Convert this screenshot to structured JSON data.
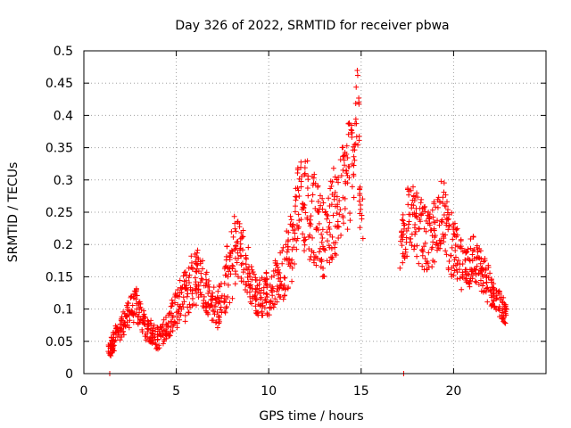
{
  "chart_data": {
    "type": "scatter",
    "title": "Day 326 of 2022, SRMTID for receiver pbwa",
    "xlabel": "GPS time / hours",
    "ylabel": "SRMTID / TECUs",
    "xlim": [
      0,
      25
    ],
    "ylim": [
      0,
      0.5
    ],
    "xticks": [
      0,
      5,
      10,
      15,
      20
    ],
    "yticks": [
      0,
      0.05,
      0.1,
      0.15,
      0.2,
      0.25,
      0.3,
      0.35,
      0.4,
      0.45,
      0.5
    ],
    "grid": true,
    "marker": "+",
    "color": "#ff0000",
    "series": [
      {
        "name": "SRMTID",
        "x": [
          1.4,
          1.5,
          1.6,
          1.8,
          2.0,
          2.2,
          2.4,
          2.6,
          2.8,
          3.0,
          3.2,
          3.4,
          3.6,
          3.8,
          4.0,
          4.2,
          4.4,
          4.6,
          4.8,
          5.0,
          5.2,
          5.4,
          5.6,
          5.8,
          6.0,
          6.2,
          6.4,
          6.6,
          6.8,
          7.0,
          7.2,
          7.4,
          7.6,
          7.8,
          8.0,
          8.2,
          8.4,
          8.6,
          8.8,
          9.0,
          9.2,
          9.4,
          9.6,
          9.8,
          10.0,
          10.2,
          10.4,
          10.6,
          10.8,
          11.0,
          11.2,
          11.4,
          11.6,
          11.8,
          12.0,
          12.2,
          12.4,
          12.6,
          12.8,
          13.0,
          13.2,
          13.4,
          13.6,
          13.8,
          14.0,
          14.2,
          14.4,
          14.6,
          14.8,
          15.0,
          17.2,
          17.4,
          17.6,
          17.8,
          18.0,
          18.2,
          18.4,
          18.6,
          18.8,
          19.0,
          19.2,
          19.4,
          19.6,
          19.8,
          20.0,
          20.2,
          20.4,
          20.6,
          20.8,
          21.0,
          21.2,
          21.4,
          21.6,
          21.8,
          22.0,
          22.2,
          22.4,
          22.6,
          22.8,
          1.4,
          17.3
        ],
        "y": [
          0.035,
          0.045,
          0.05,
          0.06,
          0.07,
          0.08,
          0.09,
          0.1,
          0.11,
          0.095,
          0.08,
          0.07,
          0.065,
          0.06,
          0.055,
          0.06,
          0.07,
          0.08,
          0.09,
          0.1,
          0.11,
          0.12,
          0.13,
          0.14,
          0.15,
          0.16,
          0.14,
          0.13,
          0.12,
          0.11,
          0.1,
          0.11,
          0.13,
          0.15,
          0.17,
          0.19,
          0.2,
          0.18,
          0.16,
          0.14,
          0.13,
          0.12,
          0.12,
          0.13,
          0.12,
          0.13,
          0.14,
          0.15,
          0.16,
          0.18,
          0.2,
          0.23,
          0.26,
          0.28,
          0.27,
          0.25,
          0.24,
          0.23,
          0.22,
          0.21,
          0.22,
          0.24,
          0.25,
          0.26,
          0.28,
          0.3,
          0.32,
          0.35,
          0.4,
          0.25,
          0.2,
          0.22,
          0.25,
          0.24,
          0.23,
          0.22,
          0.21,
          0.2,
          0.21,
          0.22,
          0.24,
          0.25,
          0.23,
          0.2,
          0.19,
          0.18,
          0.17,
          0.16,
          0.17,
          0.18,
          0.17,
          0.16,
          0.15,
          0.14,
          0.13,
          0.12,
          0.11,
          0.1,
          0.09,
          0.0,
          0.0
        ],
        "spread": [
          0.012,
          0.015,
          0.015,
          0.016,
          0.018,
          0.02,
          0.02,
          0.022,
          0.022,
          0.02,
          0.02,
          0.018,
          0.018,
          0.018,
          0.018,
          0.018,
          0.02,
          0.022,
          0.025,
          0.03,
          0.035,
          0.04,
          0.04,
          0.045,
          0.045,
          0.045,
          0.04,
          0.035,
          0.03,
          0.03,
          0.03,
          0.035,
          0.04,
          0.05,
          0.06,
          0.06,
          0.05,
          0.045,
          0.04,
          0.035,
          0.03,
          0.03,
          0.03,
          0.03,
          0.03,
          0.03,
          0.035,
          0.04,
          0.045,
          0.05,
          0.06,
          0.07,
          0.07,
          0.075,
          0.08,
          0.075,
          0.07,
          0.065,
          0.06,
          0.06,
          0.06,
          0.065,
          0.07,
          0.08,
          0.08,
          0.085,
          0.09,
          0.08,
          0.07,
          0.05,
          0.05,
          0.05,
          0.05,
          0.05,
          0.05,
          0.05,
          0.05,
          0.05,
          0.05,
          0.05,
          0.05,
          0.05,
          0.05,
          0.05,
          0.045,
          0.045,
          0.04,
          0.04,
          0.04,
          0.04,
          0.035,
          0.035,
          0.03,
          0.03,
          0.028,
          0.025,
          0.022,
          0.02,
          0.018,
          0.0,
          0.0
        ]
      }
    ]
  }
}
